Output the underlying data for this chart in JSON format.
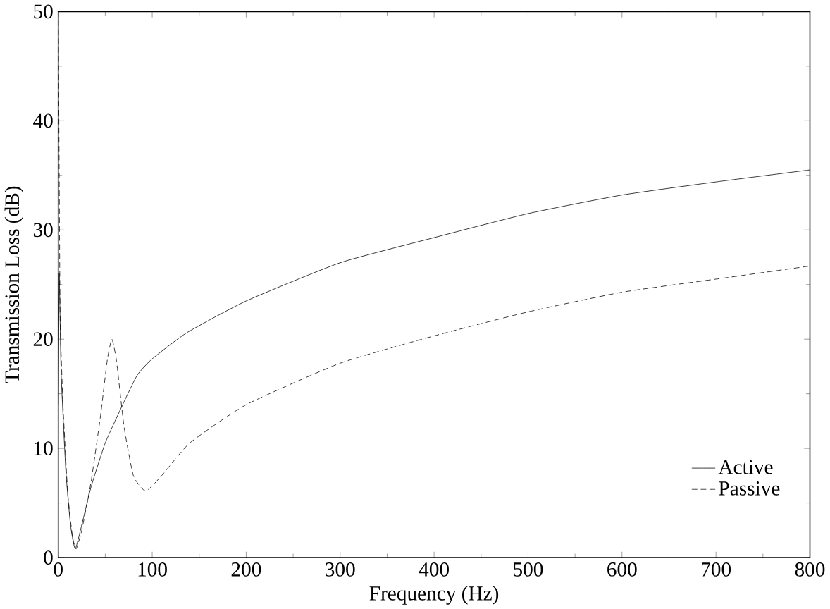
{
  "chart_data": {
    "type": "line",
    "xlabel": "Frequency (Hz)",
    "ylabel": "Transmission Loss (dB)",
    "xlim": [
      0,
      800
    ],
    "ylim": [
      0,
      50
    ],
    "xticks": [
      0,
      100,
      200,
      300,
      400,
      500,
      600,
      700,
      800
    ],
    "yticks": [
      0,
      10,
      20,
      30,
      40,
      50
    ],
    "grid": false,
    "legend": "bottom right",
    "marker": "none",
    "series": [
      {
        "name": "Active",
        "color": "#000000",
        "line_style": "solid",
        "x": [
          0,
          1,
          3,
          8,
          13,
          18,
          25,
          35,
          50,
          68,
          84,
          100,
          137,
          200,
          300,
          400,
          500,
          600,
          700,
          800
        ],
        "values": [
          14,
          26,
          17,
          8,
          3,
          0.8,
          3,
          6.5,
          10.5,
          13.9,
          16.7,
          18.2,
          20.6,
          23.5,
          27,
          29.3,
          31.5,
          33.2,
          34.4,
          35.5
        ]
      },
      {
        "name": "Passive",
        "color": "#000000",
        "line_style": "dashed",
        "x": [
          0,
          1,
          2,
          5,
          10,
          15,
          19,
          25,
          35,
          45,
          52,
          57,
          62,
          70,
          80,
          93,
          110,
          140,
          200,
          300,
          400,
          500,
          600,
          700,
          800
        ],
        "values": [
          50,
          35,
          22,
          14,
          6,
          2,
          0.8,
          2.5,
          7,
          13,
          18,
          20,
          18,
          12,
          7.5,
          6.1,
          7.5,
          10.5,
          14,
          17.8,
          20.3,
          22.5,
          24.3,
          25.5,
          26.7
        ]
      }
    ]
  }
}
